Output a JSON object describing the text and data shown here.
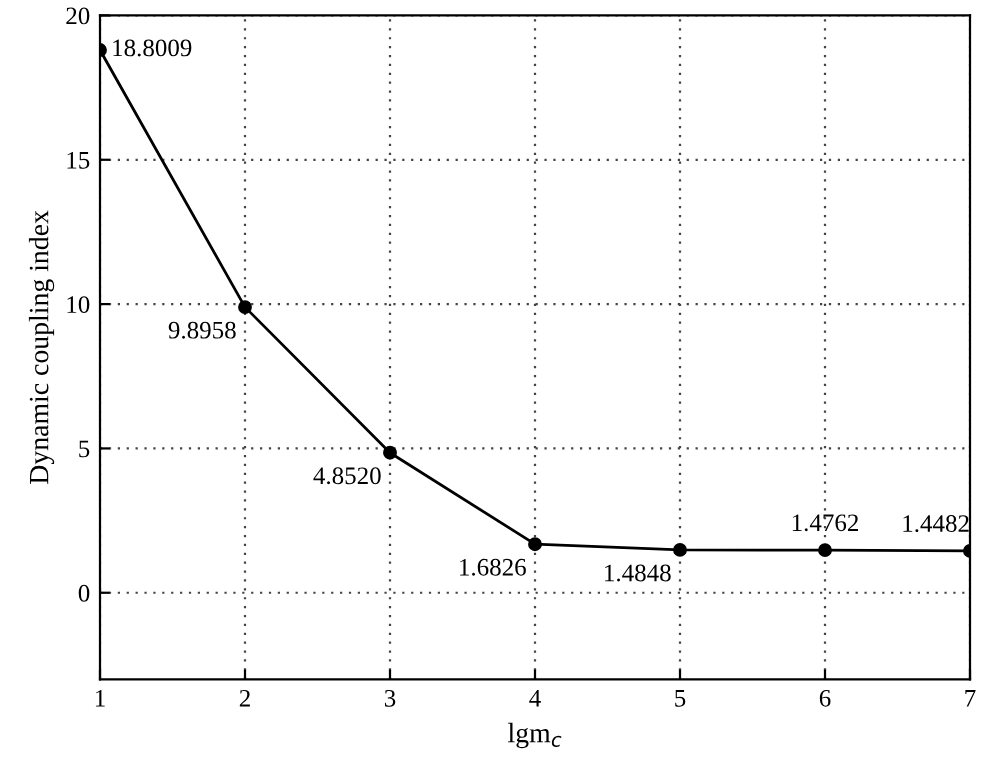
{
  "chart_data": {
    "type": "line",
    "xlabel": "lgm$_{c}$",
    "ylabel": "Dynamic coupling index",
    "x": [
      1,
      2,
      3,
      4,
      5,
      6,
      7
    ],
    "series": [
      {
        "color": "#000000",
        "values": [
          18.8009,
          9.8958,
          4.852,
          1.6826,
          1.4848,
          1.4762,
          1.4482
        ]
      }
    ],
    "value_labels": [
      "18.8009",
      "9.8958",
      "4.8520",
      "1.6826",
      "1.4848",
      "1.4762",
      "1.4482"
    ],
    "xlim": [
      1,
      7
    ],
    "xticks": [
      1,
      2,
      3,
      4,
      5,
      6,
      7
    ],
    "ylim": [
      -3,
      20
    ],
    "yticks": [
      0,
      5,
      10,
      15,
      20
    ],
    "grid": true,
    "marker": "circle",
    "line_style": "solid"
  }
}
